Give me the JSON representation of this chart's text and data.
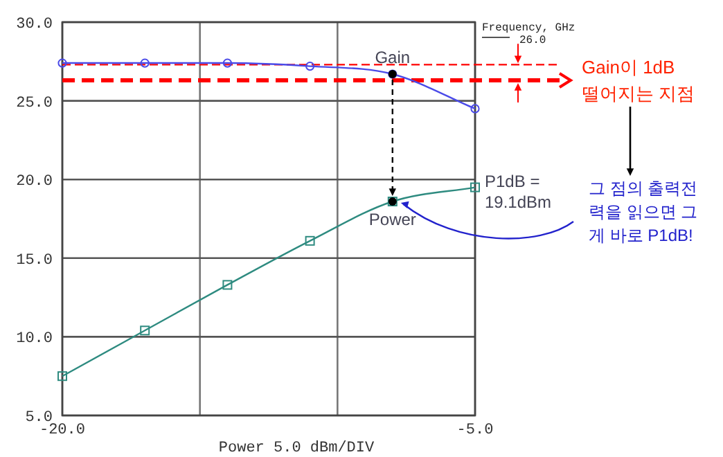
{
  "chart_data": {
    "type": "line",
    "xlabel": "Power 5.0 dBm/DIV",
    "xlim": [
      -20,
      -5
    ],
    "ylim": [
      5,
      30
    ],
    "xticks": [
      {
        "value": -20,
        "label": "-20.0"
      },
      {
        "value": -15,
        "label": null
      },
      {
        "value": -10,
        "label": null
      },
      {
        "value": -5,
        "label": "-5.0"
      }
    ],
    "yticks": [
      {
        "value": 5,
        "label": "5.0"
      },
      {
        "value": 10,
        "label": "10.0"
      },
      {
        "value": 15,
        "label": "15.0"
      },
      {
        "value": 20,
        "label": "20.0"
      },
      {
        "value": 25,
        "label": "25.0"
      },
      {
        "value": 30,
        "label": "30.0"
      }
    ],
    "grid": true,
    "series": [
      {
        "color": "#4a4ae8",
        "marker": "circle",
        "x": [
          -20,
          -17,
          -14,
          -11,
          -8,
          -5
        ],
        "values": [
          27.4,
          27.4,
          27.4,
          27.2,
          26.7,
          24.5
        ]
      },
      {
        "color": "#2e8b80",
        "marker": "square",
        "x": [
          -20,
          -17,
          -14,
          -11,
          -8,
          -5
        ],
        "values": [
          7.5,
          10.4,
          13.3,
          16.1,
          18.6,
          19.5
        ]
      }
    ],
    "ref_lines": [
      {
        "axis": "y",
        "value": 27.3,
        "label": null,
        "color": "#ff0000",
        "line_style": "dashed"
      },
      {
        "axis": "y",
        "value": 26.3,
        "label": null,
        "color": "#ff0000",
        "line_style": "dashed"
      }
    ],
    "annotations": [
      {
        "text": "Gain",
        "x": -8,
        "y": 26.7
      },
      {
        "text": "Power",
        "x": -8,
        "y": 18.6
      },
      "P1dB =\n19.1dBm",
      "Frequency, GHz",
      "26.0",
      "Gain이 1dB\n떨어지는 지점",
      "그 점의 출력전\n력을 읽으면 그\n게 바로 P1dB!"
    ]
  }
}
